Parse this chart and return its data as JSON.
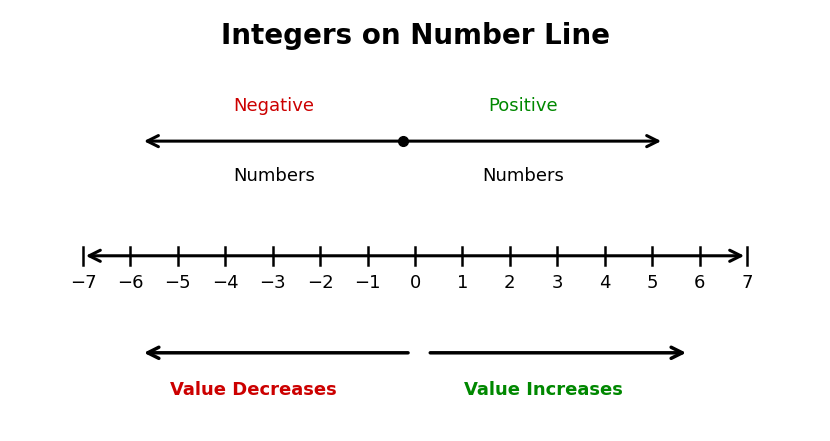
{
  "title": "Integers on Number Line",
  "title_fontsize": 20,
  "title_fontweight": "bold",
  "background_color": "#ffffff",
  "neg_label": "Negative",
  "pos_label": "Positive",
  "numbers_label": "Numbers",
  "neg_label_color": "#cc0000",
  "pos_label_color": "#008800",
  "integers": [
    -7,
    -6,
    -5,
    -4,
    -3,
    -2,
    -1,
    0,
    1,
    2,
    3,
    4,
    5,
    6,
    7
  ],
  "tick_labels": [
    "−7",
    "−6",
    "−5",
    "−4",
    "−3",
    "−2",
    "−1",
    "0",
    "1",
    "2",
    "3",
    "4",
    "5",
    "6",
    "7"
  ],
  "val_dec_label": "Value Decreases",
  "val_inc_label": "Value Increases",
  "val_dec_color": "#cc0000",
  "val_inc_color": "#008800",
  "label_fontsize": 13,
  "sublabel_fontsize": 13,
  "tick_labels_fontsize": 13
}
